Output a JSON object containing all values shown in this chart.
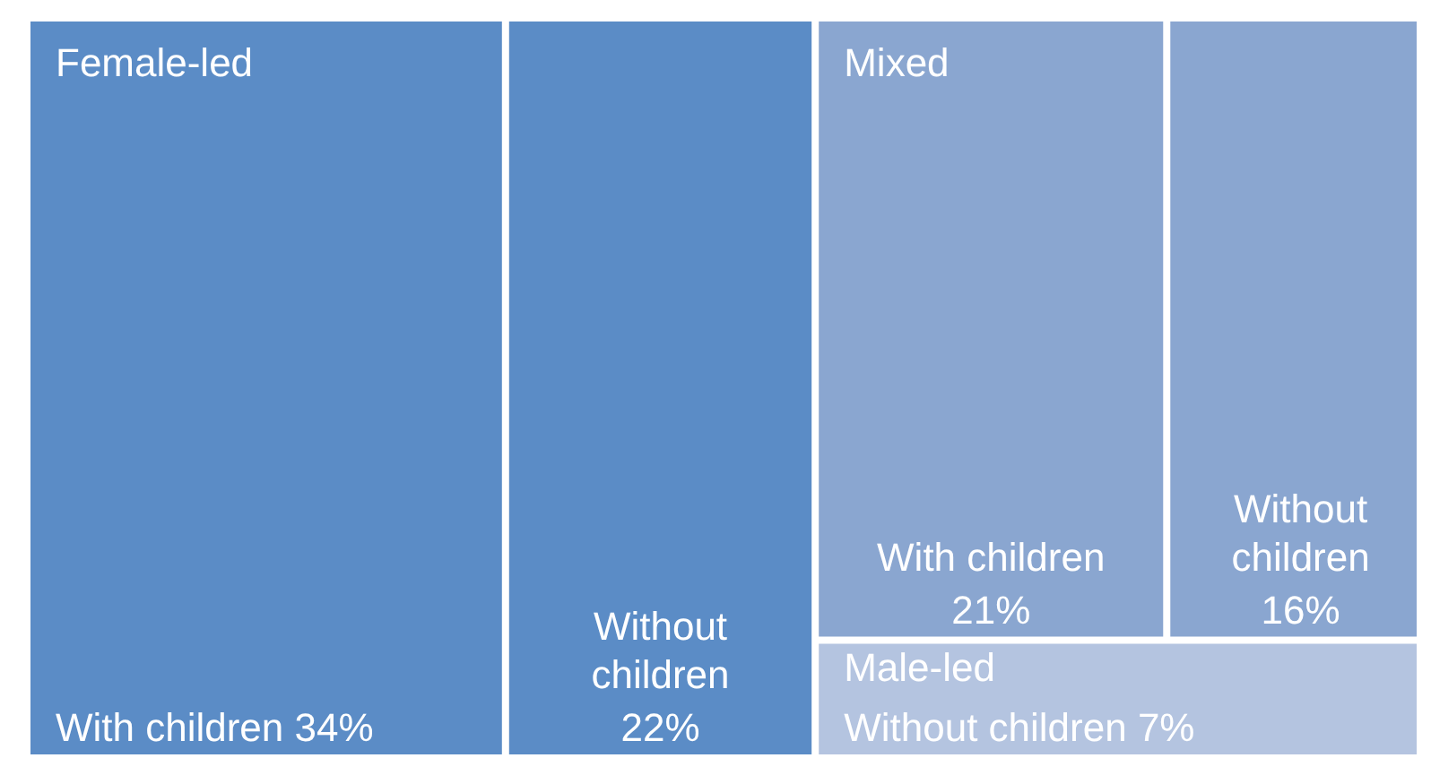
{
  "chart_data": {
    "type": "other",
    "categories": [
      "With children",
      "Without children",
      "With children",
      "Without children",
      "Without children"
    ],
    "values": [
      34,
      22,
      21,
      16,
      7
    ],
    "value_labels": [
      "34%",
      "22%",
      "21%",
      "16%",
      "7%"
    ],
    "colors": [
      "#5b8cc6",
      "#5b8cc6",
      "#8aa6d0",
      "#8aa6d0",
      "#b4c4e0"
    ],
    "annotations": [
      "Female-led",
      "Mixed",
      "Male-led"
    ]
  }
}
